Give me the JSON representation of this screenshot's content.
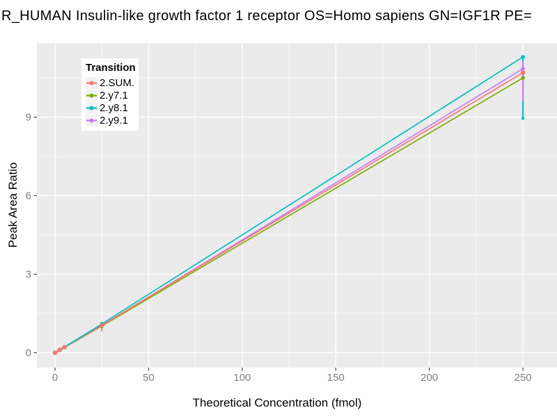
{
  "chart_data": {
    "type": "line",
    "title": "R_HUMAN Insulin-like growth factor 1 receptor OS=Homo sapiens GN=IGF1R PE=",
    "xlabel": "Theoretical Concentration (fmol)",
    "ylabel": "Peak Area Ratio",
    "legend_title": "Transition",
    "x": [
      0,
      2.5,
      5,
      25,
      250
    ],
    "series": [
      {
        "name": "2.SUM.",
        "color": "#F8766D",
        "values": [
          0,
          0.11,
          0.21,
          1.05,
          10.7
        ]
      },
      {
        "name": "2.y7.1",
        "color": "#7CAE00",
        "values": [
          0,
          0.1,
          0.2,
          1.02,
          10.5
        ]
      },
      {
        "name": "2.y8.1",
        "color": "#00BFC4",
        "values": [
          0,
          0.11,
          0.22,
          1.1,
          11.3
        ]
      },
      {
        "name": "2.y9.1",
        "color": "#C77CFF",
        "values": [
          0,
          0.11,
          0.21,
          1.04,
          10.85
        ]
      }
    ],
    "error_bars": [
      {
        "series": "2.y8.1",
        "x": 250,
        "low": 8.95,
        "high": 11.3,
        "cap": "bottom"
      },
      {
        "series": "2.y9.1",
        "x": 250,
        "low": 9.6,
        "high": 11.15
      },
      {
        "series": "2.SUM.",
        "x": 25,
        "low": 0.82,
        "high": 1.18
      }
    ],
    "x_ticks": [
      0,
      50,
      100,
      150,
      200,
      250
    ],
    "y_ticks": [
      0,
      3,
      6,
      9
    ],
    "x_minor": [
      25,
      75,
      125,
      175,
      225
    ],
    "y_minor": [
      1.5,
      4.5,
      7.5,
      10.5
    ],
    "xlim": [
      -9.7,
      268.2
    ],
    "ylim": [
      -0.571,
      11.83
    ],
    "grid": "on",
    "legend_position": "top-left-inside",
    "colors": {
      "panel_background": "#EBEBEB",
      "gridline": "#FFFFFF",
      "tick_text": "#7F7F7F",
      "tick_mark": "#333333",
      "legend_key_background": "#F2F2F2"
    }
  }
}
